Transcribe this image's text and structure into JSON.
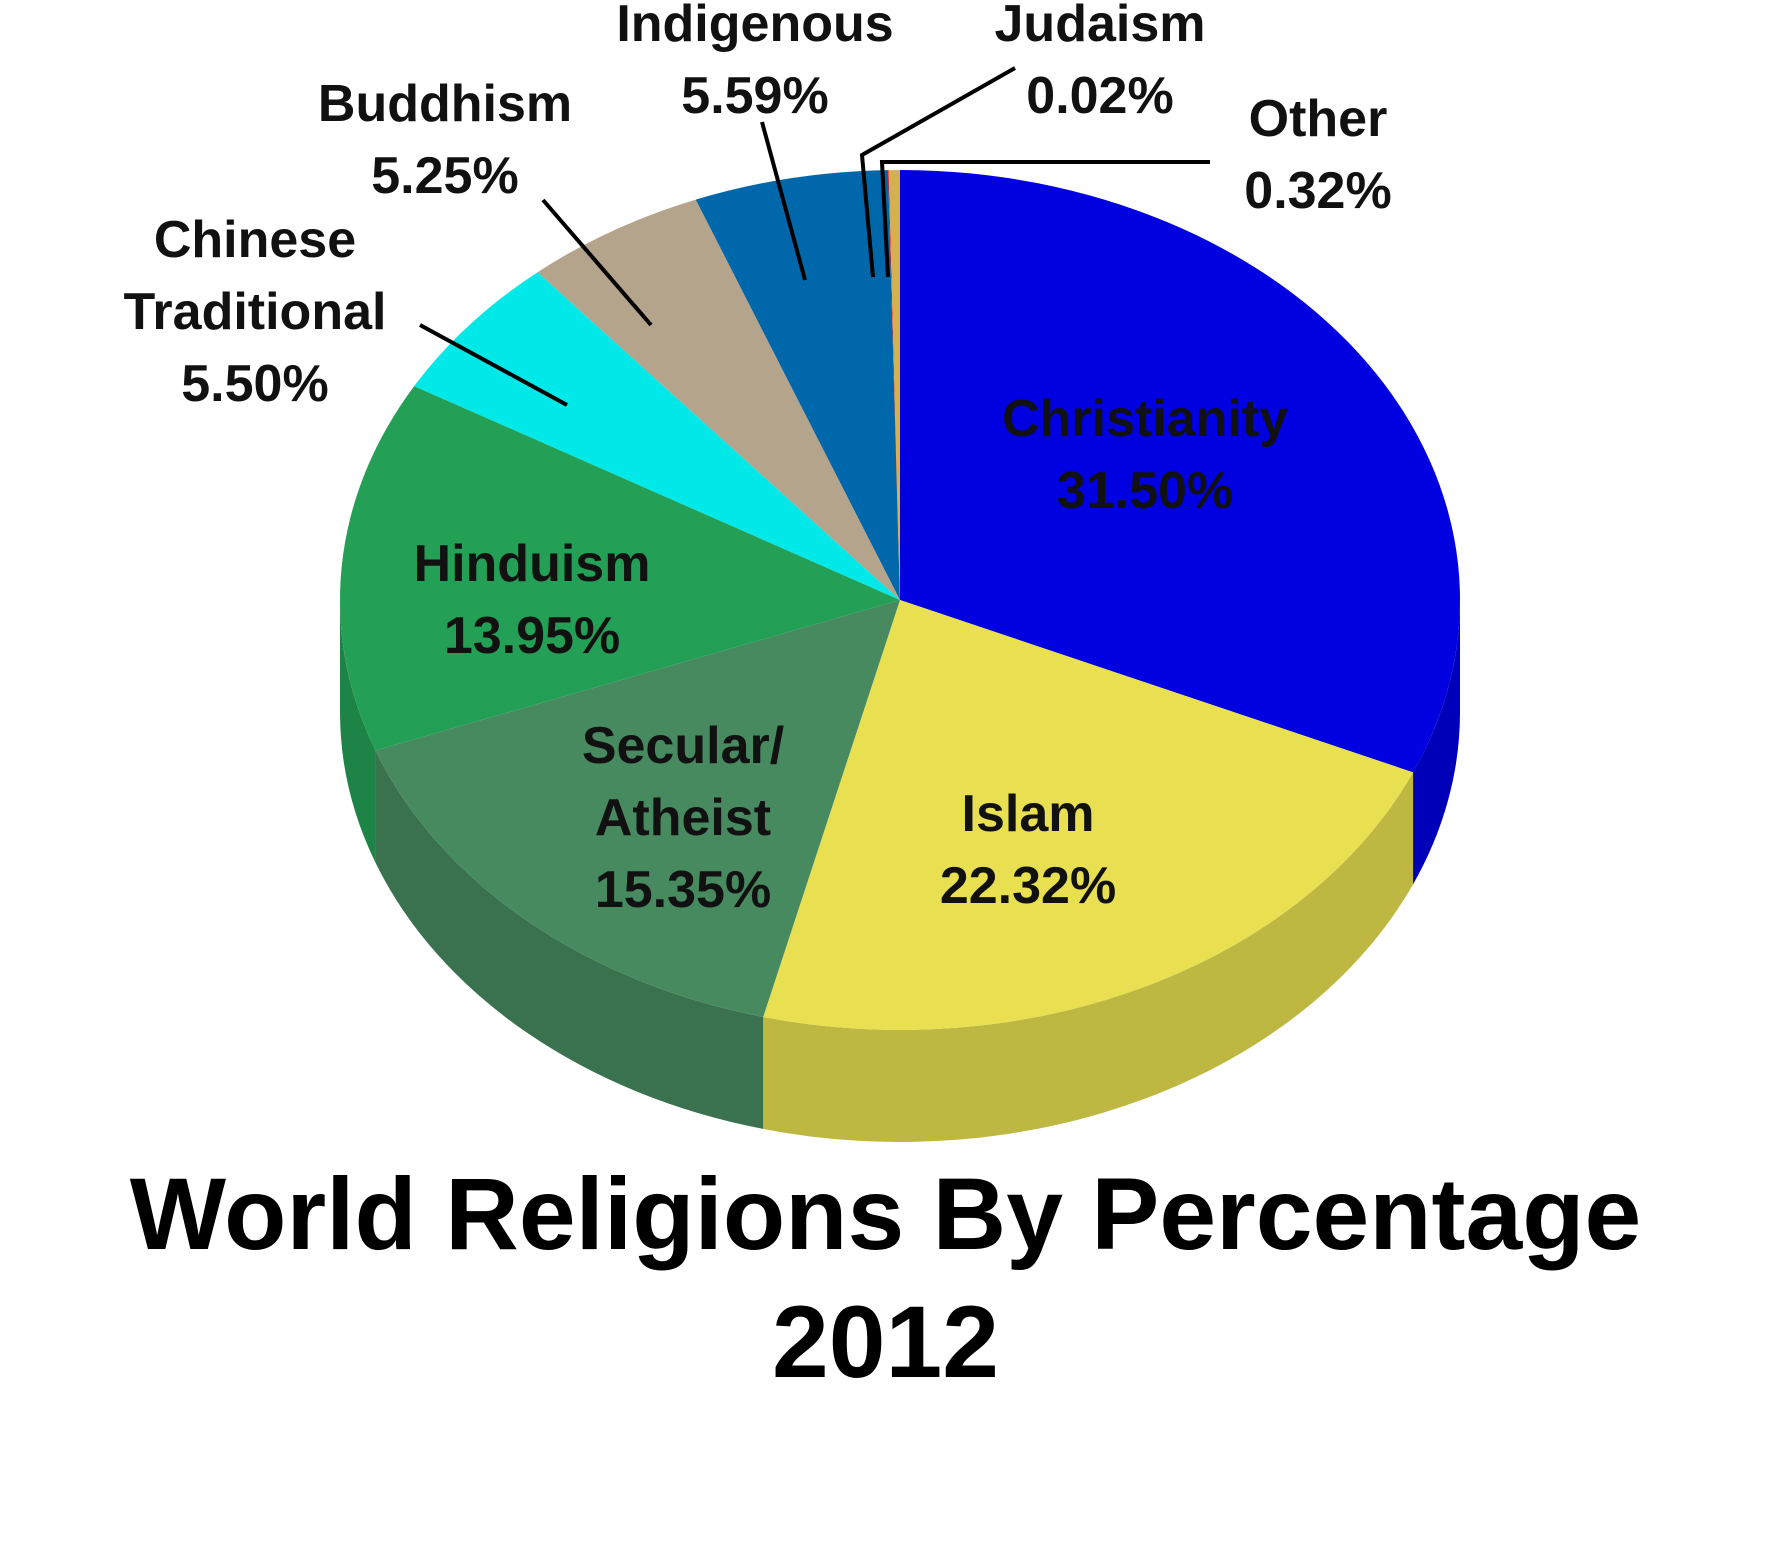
{
  "chart_data": {
    "type": "pie",
    "title": "World Religions By Percentage 2012",
    "categories": [
      "Christianity",
      "Islam",
      "Secular/ Atheist",
      "Hinduism",
      "Chinese Traditional",
      "Buddhism",
      "Indigenous",
      "Judaism",
      "Other"
    ],
    "values": [
      31.5,
      22.32,
      15.35,
      13.95,
      5.5,
      5.25,
      5.59,
      0.02,
      0.32
    ],
    "value_labels": [
      "31.50%",
      "22.32%",
      "15.35%",
      "13.95%",
      "5.50%",
      "5.25%",
      "5.59%",
      "0.02%",
      "0.32%"
    ],
    "colors": [
      "#0000e0",
      "#e8e050",
      "#478a60",
      "#23a055",
      "#00e8e8",
      "#b5a48c",
      "#0067aa",
      "#ff0000",
      "#d4b050"
    ]
  }
}
